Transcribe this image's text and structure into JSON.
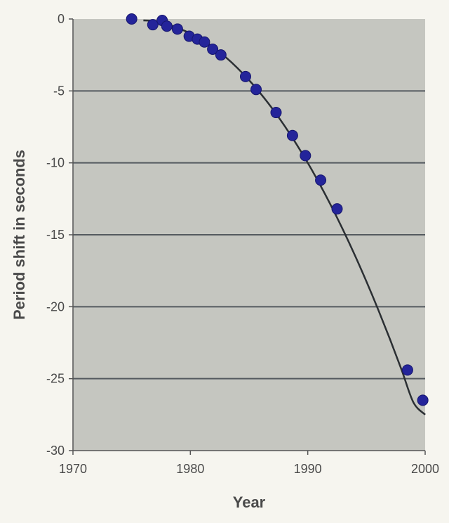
{
  "chart_data": {
    "type": "scatter",
    "title": "",
    "xlabel": "Year",
    "ylabel": "Period shift in seconds",
    "xlim": [
      1970,
      2000
    ],
    "ylim": [
      -30,
      0
    ],
    "x_ticks": [
      1970,
      1980,
      1990,
      2000
    ],
    "x_tick_labels": [
      "1970",
      "1980",
      "1990",
      "2000"
    ],
    "y_ticks": [
      0,
      -5,
      -10,
      -15,
      -20,
      -25,
      -30
    ],
    "y_tick_labels": [
      "0",
      "-5",
      "-10",
      "-15",
      "-20",
      "-25",
      "-30"
    ],
    "grid": "horizontal",
    "legend": "none",
    "series": [
      {
        "type": "scatter",
        "x": [
          1975.0,
          1976.8,
          1977.6,
          1978.0,
          1978.9,
          1979.9,
          1980.6,
          1981.2,
          1981.9,
          1982.6,
          1984.7,
          1985.6,
          1987.3,
          1988.7,
          1989.8,
          1991.1,
          1992.5,
          1998.5,
          1999.8
        ],
        "y": [
          0.0,
          -0.4,
          -0.1,
          -0.5,
          -0.7,
          -1.2,
          -1.4,
          -1.6,
          -2.1,
          -2.5,
          -4.0,
          -4.9,
          -6.5,
          -8.1,
          -9.5,
          -11.2,
          -13.2,
          -24.4,
          -26.5
        ]
      },
      {
        "type": "line",
        "x": [
          1976,
          1977,
          1978,
          1979,
          1980,
          1981,
          1982,
          1983,
          1984,
          1985,
          1986,
          1987,
          1988,
          1989,
          1990,
          1991,
          1992,
          1993,
          1994,
          1995,
          1996,
          1997,
          1998,
          1999,
          2000
        ],
        "y": [
          -0.1,
          -0.15,
          -0.35,
          -0.65,
          -1.0,
          -1.45,
          -2.0,
          -2.65,
          -3.4,
          -4.25,
          -5.2,
          -6.25,
          -7.4,
          -8.65,
          -10.0,
          -11.45,
          -13.0,
          -14.65,
          -16.4,
          -18.25,
          -20.2,
          -22.25,
          -24.4,
          -26.65,
          -27.5
        ]
      }
    ],
    "colors": {
      "page_background": "#f6f5ef",
      "plot_background": "#c5c6c0",
      "gridline": "#555a5f",
      "axis": "#555555",
      "curve": "#2b2f33",
      "marker": "#24249a",
      "text": "#4a4a4a"
    }
  }
}
